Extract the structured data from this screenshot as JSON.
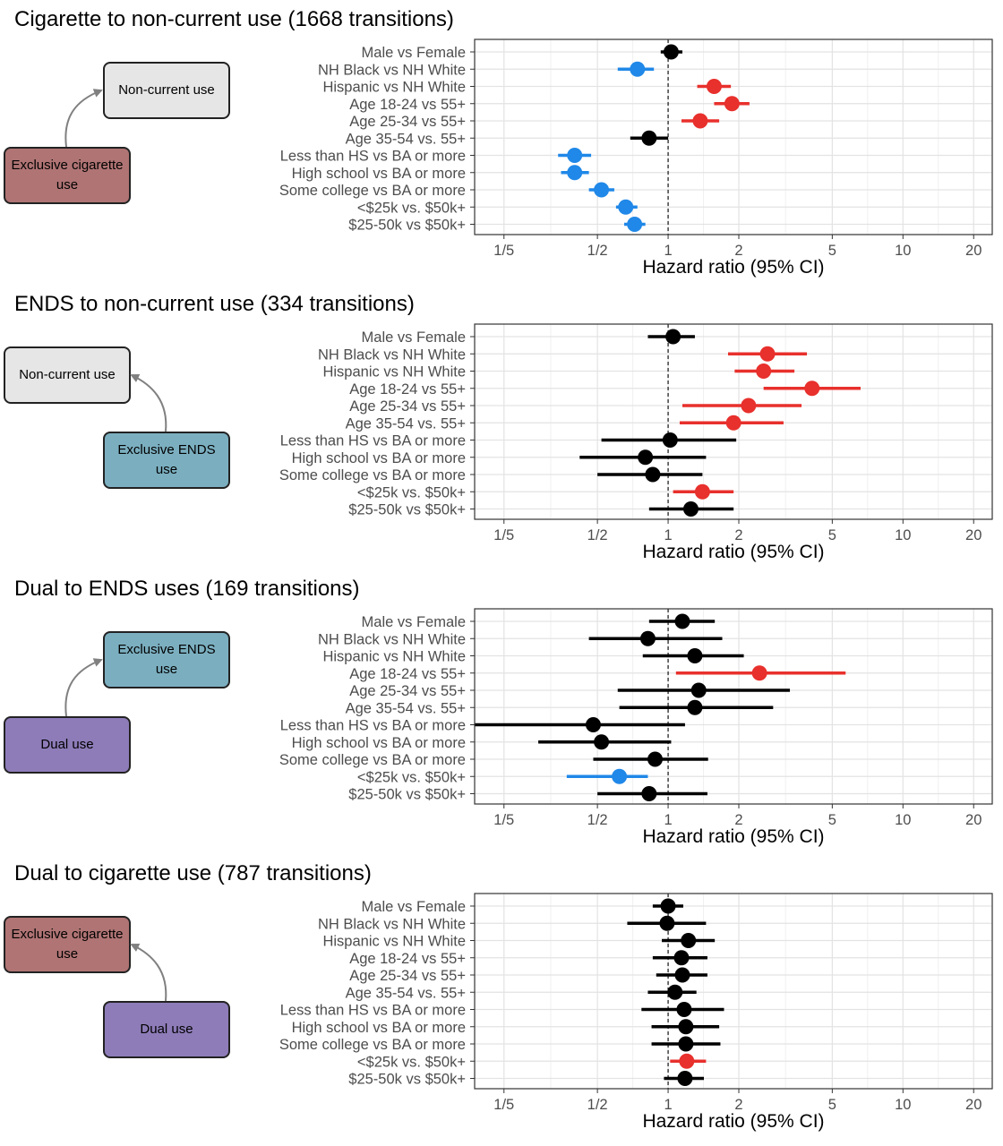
{
  "colors": {
    "significant_increase": "#e8302c",
    "significant_decrease": "#2088e8",
    "not_significant": "#000000",
    "cigarette_box": "#b07474",
    "ends_box": "#7bafc0",
    "dual_box": "#8e7cb9",
    "noncurrent_box": "#e6e6e6"
  },
  "xlabel": "Hazard ratio (95% CI)",
  "x_ticks": [
    {
      "value": 0.2,
      "label": "1/5"
    },
    {
      "value": 0.5,
      "label": "1/2"
    },
    {
      "value": 1,
      "label": "1"
    },
    {
      "value": 2,
      "label": "2"
    },
    {
      "value": 5,
      "label": "5"
    },
    {
      "value": 10,
      "label": "10"
    },
    {
      "value": 20,
      "label": "20"
    }
  ],
  "row_labels": [
    "Male vs Female",
    "NH Black vs NH White",
    "Hispanic vs NH White",
    "Age 18-24 vs 55+",
    "Age 25-34 vs 55+",
    "Age 35-54 vs. 55+",
    "Less than HS vs BA or more",
    "High school vs BA or more",
    "Some college vs BA or more",
    "<$25k vs. $50k+",
    "$25-50k vs $50k+"
  ],
  "diagram_labels": {
    "cigarette": "Exclusive cigarette use",
    "ends": "Exclusive ENDS use",
    "dual": "Dual use",
    "noncurrent": "Non-current use"
  },
  "chart_data": [
    {
      "type": "forest",
      "title": "Cigarette to non-current use (1668 transitions)",
      "x_scale": "log",
      "xlim": [
        0.15,
        24
      ],
      "reference_line": 1,
      "diagram": {
        "from": "cigarette",
        "to": "noncurrent",
        "from_side": "left",
        "from_color": "#b07474",
        "to_color": "#e6e6e6"
      },
      "hr": [
        1.03,
        0.74,
        1.57,
        1.87,
        1.37,
        0.83,
        0.4,
        0.4,
        0.52,
        0.66,
        0.72
      ],
      "lo": [
        0.93,
        0.61,
        1.33,
        1.57,
        1.14,
        0.69,
        0.34,
        0.35,
        0.46,
        0.6,
        0.65
      ],
      "hi": [
        1.15,
        0.87,
        1.85,
        2.22,
        1.65,
        1.0,
        0.47,
        0.46,
        0.59,
        0.74,
        0.8
      ],
      "status": [
        "ns",
        "dec",
        "inc",
        "inc",
        "inc",
        "ns",
        "dec",
        "dec",
        "dec",
        "dec",
        "dec"
      ]
    },
    {
      "type": "forest",
      "title": "ENDS to non-current use (334 transitions)",
      "x_scale": "log",
      "xlim": [
        0.15,
        24
      ],
      "reference_line": 1,
      "diagram": {
        "from": "ends",
        "to": "noncurrent",
        "from_side": "right",
        "from_color": "#7bafc0",
        "to_color": "#e6e6e6"
      },
      "hr": [
        1.05,
        2.65,
        2.55,
        4.1,
        2.2,
        1.9,
        1.02,
        0.8,
        0.86,
        1.4,
        1.25
      ],
      "lo": [
        0.82,
        1.8,
        1.92,
        2.55,
        1.15,
        1.12,
        0.52,
        0.42,
        0.5,
        1.05,
        0.83
      ],
      "hi": [
        1.3,
        3.9,
        3.45,
        6.6,
        3.7,
        3.1,
        1.95,
        1.45,
        1.4,
        1.9,
        1.9
      ],
      "status": [
        "ns",
        "inc",
        "inc",
        "inc",
        "inc",
        "inc",
        "ns",
        "ns",
        "ns",
        "inc",
        "ns"
      ]
    },
    {
      "type": "forest",
      "title": "Dual to ENDS uses (169 transitions)",
      "x_scale": "log",
      "xlim": [
        0.15,
        24
      ],
      "reference_line": 1,
      "diagram": {
        "from": "dual",
        "to": "ends",
        "from_side": "left",
        "from_color": "#8e7cb9",
        "to_color": "#7bafc0"
      },
      "hr": [
        1.15,
        0.82,
        1.3,
        2.45,
        1.35,
        1.3,
        0.48,
        0.52,
        0.88,
        0.62,
        0.83
      ],
      "lo": [
        0.83,
        0.46,
        0.78,
        1.08,
        0.61,
        0.62,
        0.15,
        0.28,
        0.48,
        0.37,
        0.5
      ],
      "hi": [
        1.58,
        1.7,
        2.1,
        5.7,
        3.3,
        2.8,
        1.18,
        1.03,
        1.48,
        0.82,
        1.47
      ],
      "status": [
        "ns",
        "ns",
        "ns",
        "inc",
        "ns",
        "ns",
        "ns",
        "ns",
        "ns",
        "dec",
        "ns"
      ]
    },
    {
      "type": "forest",
      "title": "Dual to cigarette use (787 transitions)",
      "x_scale": "log",
      "xlim": [
        0.15,
        24
      ],
      "reference_line": 1,
      "diagram": {
        "from": "dual",
        "to": "cigarette",
        "from_side": "right",
        "from_color": "#8e7cb9",
        "to_color": "#b07474"
      },
      "hr": [
        1.0,
        0.99,
        1.22,
        1.14,
        1.15,
        1.07,
        1.17,
        1.19,
        1.19,
        1.2,
        1.18
      ],
      "lo": [
        0.86,
        0.67,
        0.94,
        0.86,
        0.89,
        0.82,
        0.77,
        0.85,
        0.85,
        1.02,
        0.96
      ],
      "hi": [
        1.16,
        1.45,
        1.58,
        1.47,
        1.47,
        1.32,
        1.73,
        1.65,
        1.67,
        1.45,
        1.42
      ],
      "status": [
        "ns",
        "ns",
        "ns",
        "ns",
        "ns",
        "ns",
        "ns",
        "ns",
        "ns",
        "inc",
        "ns"
      ]
    }
  ]
}
